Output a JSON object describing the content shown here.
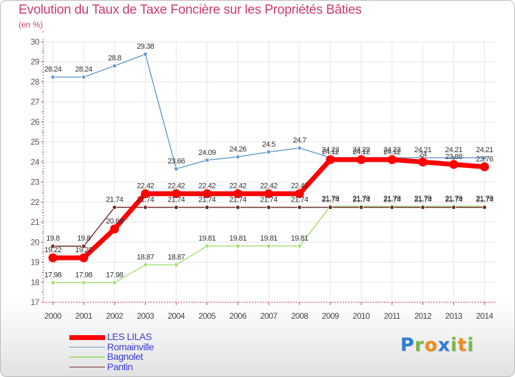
{
  "title": "Evolution du Taux de Taxe Foncière sur les Propriétés Bâties",
  "subtitle": "(en %)",
  "colors": {
    "title": "#cc3a70",
    "axis": "#cc3a70",
    "grid": "#e6e6e6",
    "label": "#333333",
    "legend_text": "#3a3ae0"
  },
  "legend": [
    {
      "name": "LES LILAS",
      "color": "#ff0000",
      "width": 7
    },
    {
      "name": "Romainville",
      "color": "#6b9fcf",
      "width": 1.5
    },
    {
      "name": "Bagnolet",
      "color": "#a6e07a",
      "width": 1.5
    },
    {
      "name": "Pantin",
      "color": "#6f2c2c",
      "width": 1.5
    }
  ],
  "logo": {
    "letters": [
      {
        "char": "P",
        "color": "#2d7fd1"
      },
      {
        "char": "r",
        "color": "#7ab648"
      },
      {
        "char": "o",
        "color": "#f08a1e"
      },
      {
        "char": "x",
        "color": "#2d7fd1"
      },
      {
        "char": "i",
        "color": "#7ab648"
      },
      {
        "char": "t",
        "color": "#f08a1e"
      },
      {
        "char": "i",
        "color": "#7ab648"
      }
    ]
  },
  "chart_data": {
    "type": "line",
    "title": "Evolution du Taux de Taxe Foncière sur les Propriétés Bâties",
    "ylabel": "(en %)",
    "xlabel": "",
    "categories": [
      "2000",
      "2001",
      "2002",
      "2003",
      "2004",
      "2005",
      "2006",
      "2007",
      "2008",
      "2009",
      "2010",
      "2011",
      "2012",
      "2013",
      "2014"
    ],
    "ylim": [
      17,
      30
    ],
    "yticks": [
      "17",
      "18",
      "19",
      "20",
      "21",
      "22",
      "23",
      "24",
      "25",
      "26",
      "27",
      "28",
      "29",
      "30"
    ],
    "grid": true,
    "series": [
      {
        "name": "Romainville",
        "color": "#6b9fcf",
        "values": [
          28.24,
          28.24,
          28.8,
          29.38,
          23.66,
          24.09,
          24.26,
          24.5,
          24.7,
          24.22,
          24.22,
          24.22,
          24.21,
          24.21,
          24.21
        ],
        "labels": [
          "28.24",
          "28.24",
          "28.8",
          "29.38",
          "23.66",
          "24.09",
          "24.26",
          "24.5",
          "24.7",
          "24.22",
          "24.22",
          "24.22",
          "24.21",
          "24.21",
          "24.21"
        ]
      },
      {
        "name": "Bagnolet",
        "color": "#a6e07a",
        "values": [
          17.98,
          17.98,
          17.98,
          18.87,
          18.87,
          19.81,
          19.81,
          19.81,
          19.81,
          21.79,
          21.79,
          21.79,
          21.79,
          21.79,
          21.79
        ],
        "labels": [
          "17.98",
          "17.98",
          "17.98",
          "18.87",
          "18.87",
          "19.81",
          "19.81",
          "19.81",
          "19.81",
          "21.79",
          "21.79",
          "21.79",
          "21.79",
          "21.79",
          "21.79"
        ]
      },
      {
        "name": "Pantin",
        "color": "#6f2c2c",
        "values": [
          19.8,
          19.8,
          21.74,
          21.74,
          21.74,
          21.74,
          21.74,
          21.74,
          21.74,
          21.74,
          21.74,
          21.74,
          21.74,
          21.74,
          21.74
        ],
        "labels": [
          "19.8",
          "19.8",
          "21.74",
          "21.74",
          "21.74",
          "21.74",
          "21.74",
          "21.74",
          "21.74",
          "21.74",
          "21.74",
          "21.74",
          "21.74",
          "21.74",
          "21.74"
        ]
      },
      {
        "name": "LES LILAS",
        "color": "#ff0000",
        "values": [
          19.22,
          19.22,
          20.66,
          22.42,
          22.42,
          22.42,
          22.42,
          22.42,
          22.42,
          24.12,
          24.12,
          24.12,
          24.0,
          23.88,
          23.76
        ],
        "labels": [
          "19.22",
          "19.22",
          "20.66",
          "22.42",
          "22.42",
          "22.42",
          "22.42",
          "22.42",
          "22.42",
          "24.12",
          "24.12",
          "24.12",
          "24",
          "23.88",
          "23.76"
        ]
      }
    ]
  }
}
